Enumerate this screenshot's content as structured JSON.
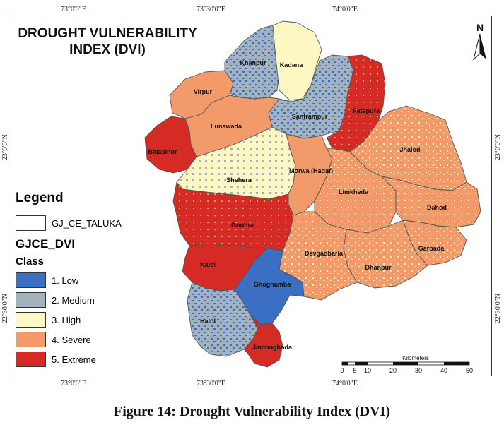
{
  "title_line1": "DROUGHT VULNERABILITY",
  "title_line2": "INDEX (DVI)",
  "north_label": "N",
  "ticks": {
    "top": [
      "73°0'0\"E",
      "73°30'0\"E",
      "74°0'0\"E"
    ],
    "bottom": [
      "73°0'0\"E",
      "73°30'0\"E",
      "74°0'0\"E"
    ],
    "left": [
      "23°0'0\"N",
      "22°30'0\"N"
    ],
    "right": [
      "23°0'0\"N",
      "22°30'0\"N"
    ]
  },
  "legend": {
    "title": "Legend",
    "taluka_layer": "GJ_CE_TALUKA",
    "dvi_layer": "GJCE_DVI",
    "class_heading": "Class",
    "classes": [
      {
        "label": "1. Low",
        "color": "#3a6fc4"
      },
      {
        "label": "2. Medium",
        "color": "#a3b2bf"
      },
      {
        "label": "3. High",
        "color": "#fdf7c3"
      },
      {
        "label": "4. Severe",
        "color": "#f39a6b"
      },
      {
        "label": "5. Extreme",
        "color": "#d62a24"
      }
    ]
  },
  "scalebar": {
    "unit": "Kilometers",
    "ticks": [
      "0",
      "5",
      "10",
      "20",
      "30",
      "40",
      "50"
    ]
  },
  "talukas": [
    {
      "name": "Khanpur",
      "class": 2
    },
    {
      "name": "Kadana",
      "class": 3
    },
    {
      "name": "Virpur",
      "class": 4
    },
    {
      "name": "Santrampur",
      "class": 2
    },
    {
      "name": "Fatepura",
      "class": 5
    },
    {
      "name": "Lunawada",
      "class": 4
    },
    {
      "name": "Balasinor",
      "class": 5
    },
    {
      "name": "Jhalod",
      "class": 4
    },
    {
      "name": "Morwa (Hadaf)",
      "class": 4
    },
    {
      "name": "Shehera",
      "class": 3
    },
    {
      "name": "Limkheda",
      "class": 4
    },
    {
      "name": "Dahod",
      "class": 4
    },
    {
      "name": "Godhra",
      "class": 5
    },
    {
      "name": "Garbada",
      "class": 4
    },
    {
      "name": "Devgadbaria",
      "class": 4
    },
    {
      "name": "Kaloi",
      "class": 5
    },
    {
      "name": "Dhanpur",
      "class": 4
    },
    {
      "name": "Ghoghamba",
      "class": 1
    },
    {
      "name": "Halol",
      "class": 2
    },
    {
      "name": "Jambughoda",
      "class": 5
    }
  ],
  "caption": "Figure 14: Drought Vulnerability Index (DVI)"
}
